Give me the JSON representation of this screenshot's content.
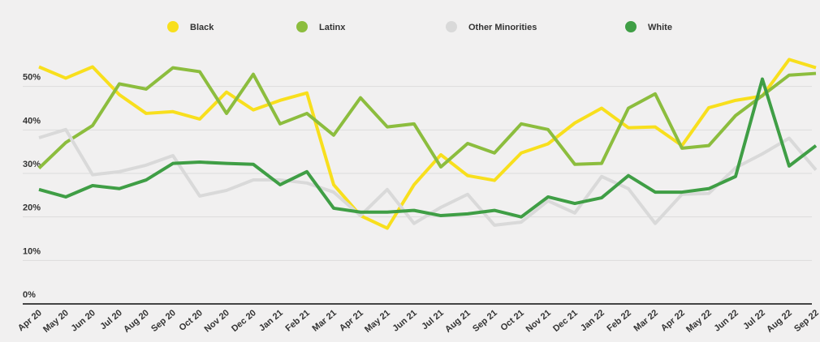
{
  "chart_data": {
    "type": "line",
    "categories": [
      "Apr 20",
      "May 20",
      "Jun 20",
      "Jul 20",
      "Aug 20",
      "Sep 20",
      "Oct 20",
      "Nov 20",
      "Dec 20",
      "Jan 21",
      "Feb 21",
      "Mar 21",
      "Apr 21",
      "May 21",
      "Jun 21",
      "Jul 21",
      "Aug 21",
      "Sep 21",
      "Oct 21",
      "Nov 21",
      "Dec 21",
      "Jan 22",
      "Feb 22",
      "Mar 22",
      "Apr 22",
      "May 22",
      "Jun 22",
      "Jul 22",
      "Aug 22",
      "Sep 22"
    ],
    "series": [
      {
        "name": "Black",
        "color": "#f8df1d",
        "values": [
          54.5,
          51.9,
          54.5,
          48.1,
          43.8,
          44.2,
          42.5,
          48.7,
          44.6,
          46.8,
          48.5,
          27.4,
          20.3,
          17.4,
          27.4,
          34.3,
          29.5,
          28.4,
          34.7,
          36.8,
          41.6,
          45.0,
          40.5,
          40.7,
          36.4,
          45.1,
          46.8,
          47.8,
          56.2,
          54.3
        ]
      },
      {
        "name": "Latinx",
        "color": "#8cbd3e",
        "values": [
          31.2,
          37.1,
          41.0,
          50.6,
          49.4,
          54.3,
          53.4,
          43.8,
          52.8,
          41.4,
          43.8,
          38.8,
          47.4,
          40.7,
          41.4,
          31.5,
          36.9,
          34.7,
          41.4,
          40.1,
          32.1,
          32.3,
          45.0,
          48.3,
          35.8,
          36.4,
          43.3,
          47.9,
          52.6,
          53.0
        ]
      },
      {
        "name": "Other Minorities",
        "color": "#d9d9d9",
        "values": [
          38.2,
          40.1,
          29.7,
          30.4,
          31.9,
          34.1,
          24.8,
          26.1,
          28.5,
          28.5,
          27.8,
          25.7,
          20.3,
          26.3,
          18.5,
          22.2,
          25.2,
          18.1,
          18.8,
          23.7,
          20.9,
          29.3,
          26.5,
          18.5,
          25.2,
          25.4,
          31.3,
          34.5,
          38.1,
          30.8
        ]
      },
      {
        "name": "White",
        "color": "#3f9e45",
        "values": [
          26.3,
          24.6,
          27.2,
          26.5,
          28.5,
          32.3,
          32.6,
          32.3,
          32.1,
          27.4,
          30.4,
          22.0,
          21.1,
          21.1,
          21.5,
          20.3,
          20.7,
          21.5,
          20.0,
          24.6,
          23.1,
          24.4,
          29.5,
          25.7,
          25.7,
          26.5,
          29.3,
          51.7,
          31.7,
          36.4
        ]
      }
    ],
    "ylim": [
      0,
      60
    ],
    "yticks": [
      {
        "value": 0,
        "label": "0%"
      },
      {
        "value": 10,
        "label": "10%"
      },
      {
        "value": 20,
        "label": "20%"
      },
      {
        "value": 30,
        "label": "30%"
      },
      {
        "value": 40,
        "label": "40%"
      },
      {
        "value": 50,
        "label": "50%"
      }
    ],
    "grid": true,
    "legend": "top"
  }
}
